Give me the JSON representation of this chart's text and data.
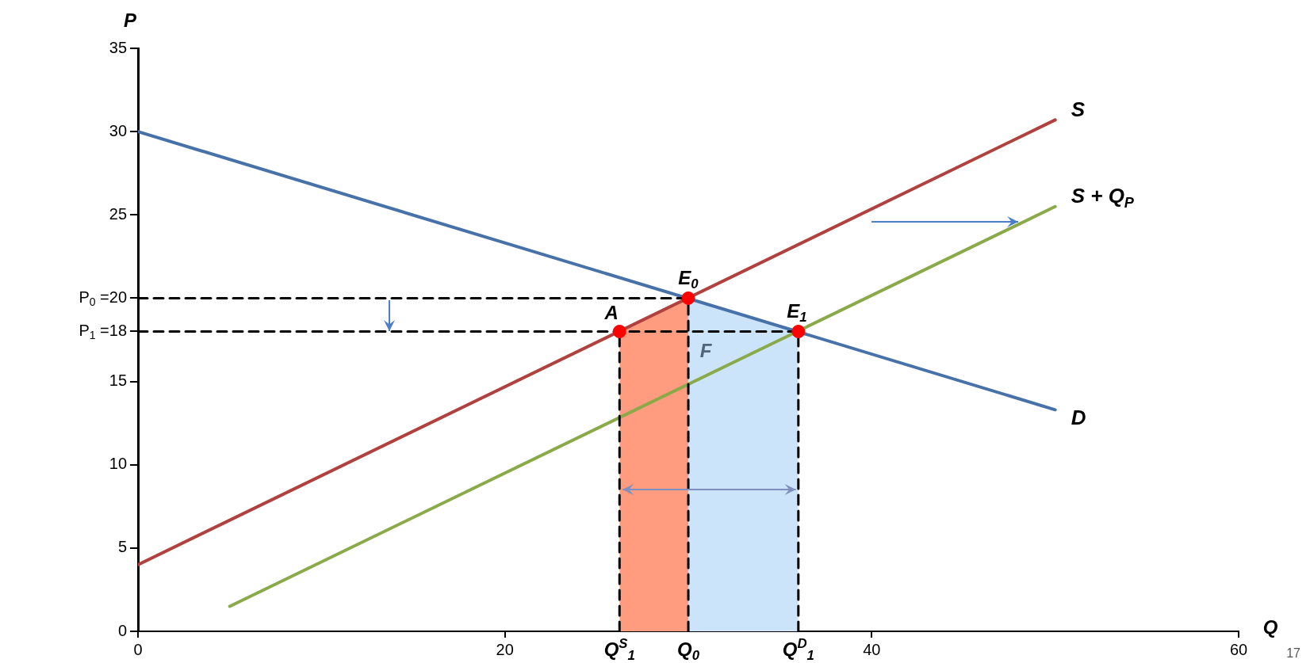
{
  "chart_data": {
    "type": "line",
    "xlabel": "Q",
    "ylabel": "P",
    "xlim": [
      0,
      60
    ],
    "ylim": [
      0,
      35
    ],
    "xticks": [
      0,
      20,
      40,
      60
    ],
    "yticks": [
      0,
      5,
      10,
      15,
      {
        "value": 18,
        "label": "P$_{1}$ =18"
      },
      {
        "value": 20,
        "label": "P$_{0}$ =20"
      },
      25,
      30,
      35
    ],
    "grid": false,
    "legend": false,
    "marker": "none",
    "line_style": "solid",
    "series": [
      {
        "type": "area",
        "color": "#ff9c80",
        "x": [
          26.25,
          30
        ],
        "values": [
          18,
          20
        ]
      },
      {
        "type": "area",
        "color": "#cce4fa",
        "x": [
          30,
          36
        ],
        "values": [
          20,
          18
        ]
      },
      {
        "name": "D",
        "color": "#4672a9",
        "x": [
          0,
          50
        ],
        "values": [
          30,
          13.3
        ]
      },
      {
        "name": "S",
        "color": "#b0413e",
        "x": [
          0,
          50
        ],
        "values": [
          4,
          30.7
        ]
      },
      {
        "name": "S + Q$_{P}$",
        "color": "#8aaa4a",
        "x": [
          5,
          50
        ],
        "values": [
          1.5,
          25.5
        ]
      },
      {
        "type": "line",
        "color": "#000000",
        "line_style": "dashed",
        "x": [
          0,
          30
        ],
        "values": [
          20,
          20
        ]
      },
      {
        "type": "line",
        "color": "#000000",
        "line_style": "dashed",
        "x": [
          0,
          36
        ],
        "values": [
          18,
          18
        ]
      },
      {
        "type": "line",
        "color": "#000000",
        "line_style": "dashed",
        "x": [
          26.25,
          26.25
        ],
        "values": [
          0,
          18
        ]
      },
      {
        "type": "line",
        "color": "#000000",
        "line_style": "dashed",
        "x": [
          30,
          30
        ],
        "values": [
          0,
          20
        ]
      },
      {
        "type": "line",
        "color": "#000000",
        "line_style": "dashed",
        "x": [
          36,
          36
        ],
        "values": [
          0,
          18
        ]
      },
      {
        "type": "scatter",
        "color": "#ff0000",
        "marker": "circle",
        "x": [
          26.25,
          30,
          36
        ],
        "values": [
          18,
          20,
          18
        ]
      }
    ],
    "annotations": [
      {
        "text": "A",
        "x": 26.25,
        "y": 18
      },
      {
        "text": "E$_{0}$",
        "x": 30,
        "y": 20
      },
      {
        "text": "E$_{1}$",
        "x": 36,
        "y": 18
      },
      {
        "text": "F",
        "x": 30,
        "y": 18
      },
      {
        "text": "Q$^{S}$$_{1}$",
        "x": 26.25,
        "y": 0
      },
      {
        "text": "Q$_{0}$",
        "x": 30,
        "y": 0
      },
      {
        "text": "Q$^{D}$$_{1}$",
        "x": 36,
        "y": 0
      },
      "17"
    ]
  }
}
